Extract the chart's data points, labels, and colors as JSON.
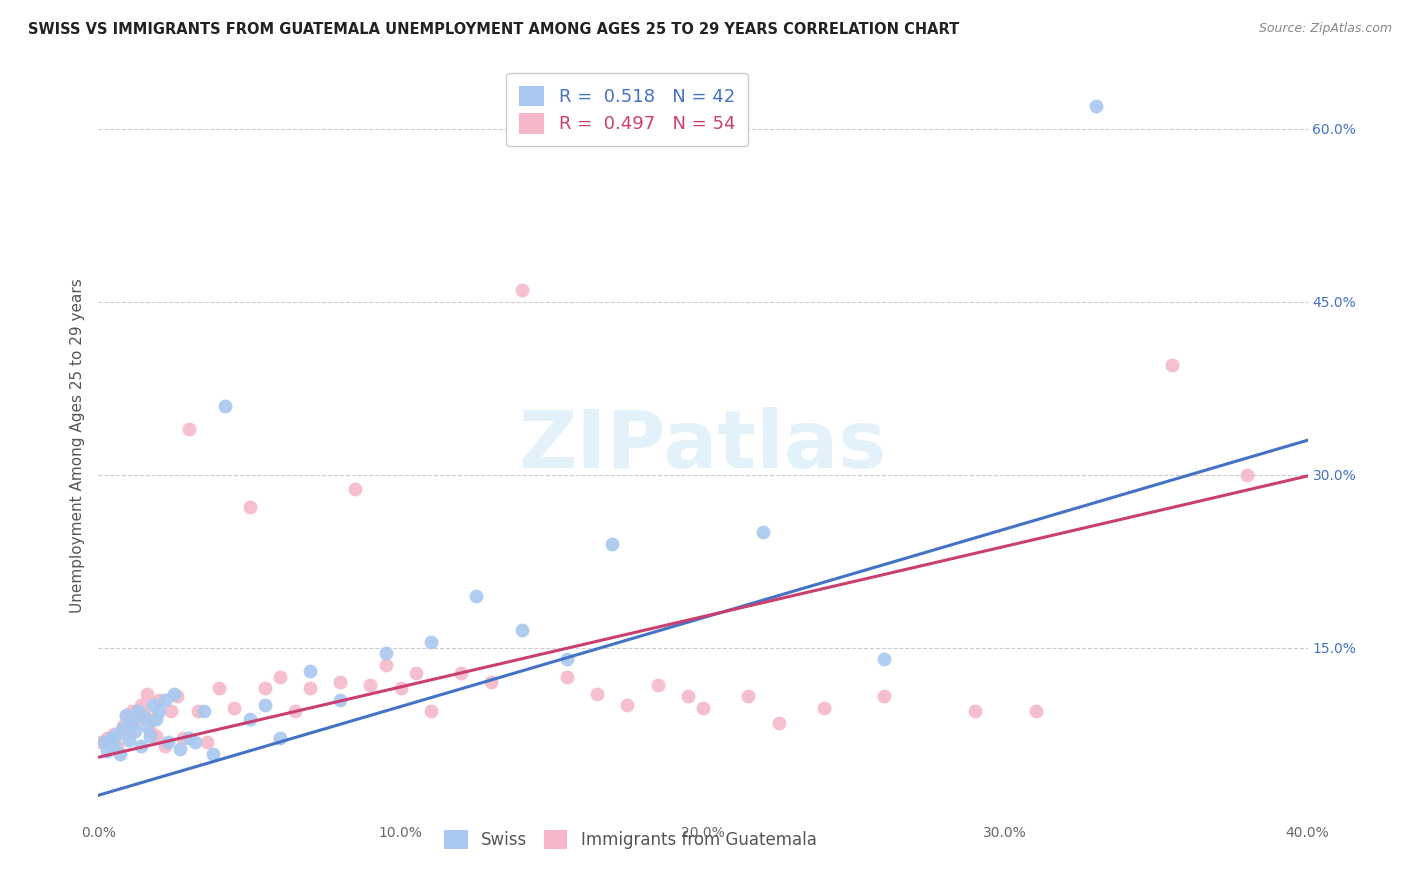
{
  "title": "SWISS VS IMMIGRANTS FROM GUATEMALA UNEMPLOYMENT AMONG AGES 25 TO 29 YEARS CORRELATION CHART",
  "source": "Source: ZipAtlas.com",
  "ylabel": "Unemployment Among Ages 25 to 29 years",
  "xlim": [
    0.0,
    0.4
  ],
  "ylim": [
    0.0,
    0.65
  ],
  "xtick_labels": [
    "0.0%",
    "",
    "10.0%",
    "",
    "20.0%",
    "",
    "30.0%",
    "",
    "40.0%"
  ],
  "xtick_vals": [
    0.0,
    0.05,
    0.1,
    0.15,
    0.2,
    0.25,
    0.3,
    0.35,
    0.4
  ],
  "ytick_labels": [
    "15.0%",
    "30.0%",
    "45.0%",
    "60.0%"
  ],
  "ytick_vals": [
    0.15,
    0.3,
    0.45,
    0.6
  ],
  "swiss_color": "#A8C8F0",
  "guatemala_color": "#F5B8C8",
  "swiss_line_color": "#4472C4",
  "guatemala_line_color": "#C94070",
  "swiss_R": 0.518,
  "swiss_N": 42,
  "guatemala_R": 0.497,
  "guatemala_N": 54,
  "swiss_intercept": 0.022,
  "swiss_slope": 0.77,
  "guatemala_intercept": 0.055,
  "guatemala_slope": 0.61,
  "swiss_x": [
    0.002,
    0.003,
    0.004,
    0.005,
    0.006,
    0.007,
    0.008,
    0.009,
    0.01,
    0.011,
    0.012,
    0.013,
    0.014,
    0.015,
    0.016,
    0.017,
    0.018,
    0.019,
    0.02,
    0.022,
    0.023,
    0.025,
    0.027,
    0.03,
    0.032,
    0.035,
    0.038,
    0.042,
    0.05,
    0.055,
    0.06,
    0.07,
    0.08,
    0.095,
    0.11,
    0.125,
    0.14,
    0.155,
    0.17,
    0.22,
    0.26,
    0.33
  ],
  "swiss_y": [
    0.068,
    0.06,
    0.072,
    0.065,
    0.075,
    0.058,
    0.08,
    0.092,
    0.07,
    0.085,
    0.078,
    0.095,
    0.065,
    0.09,
    0.082,
    0.073,
    0.1,
    0.088,
    0.095,
    0.105,
    0.068,
    0.11,
    0.062,
    0.072,
    0.068,
    0.095,
    0.058,
    0.36,
    0.088,
    0.1,
    0.072,
    0.13,
    0.105,
    0.145,
    0.155,
    0.195,
    0.165,
    0.14,
    0.24,
    0.25,
    0.14,
    0.62
  ],
  "guatemala_x": [
    0.001,
    0.003,
    0.005,
    0.006,
    0.008,
    0.009,
    0.01,
    0.011,
    0.012,
    0.014,
    0.015,
    0.016,
    0.017,
    0.018,
    0.019,
    0.02,
    0.022,
    0.024,
    0.026,
    0.028,
    0.03,
    0.033,
    0.036,
    0.04,
    0.045,
    0.05,
    0.055,
    0.06,
    0.065,
    0.07,
    0.08,
    0.085,
    0.09,
    0.095,
    0.1,
    0.105,
    0.11,
    0.12,
    0.13,
    0.14,
    0.155,
    0.165,
    0.175,
    0.185,
    0.195,
    0.2,
    0.215,
    0.225,
    0.24,
    0.26,
    0.29,
    0.31,
    0.355,
    0.38
  ],
  "guatemala_y": [
    0.068,
    0.072,
    0.075,
    0.065,
    0.082,
    0.09,
    0.078,
    0.095,
    0.085,
    0.1,
    0.092,
    0.11,
    0.078,
    0.088,
    0.073,
    0.105,
    0.065,
    0.095,
    0.108,
    0.072,
    0.34,
    0.095,
    0.068,
    0.115,
    0.098,
    0.272,
    0.115,
    0.125,
    0.095,
    0.115,
    0.12,
    0.288,
    0.118,
    0.135,
    0.115,
    0.128,
    0.095,
    0.128,
    0.12,
    0.46,
    0.125,
    0.11,
    0.1,
    0.118,
    0.108,
    0.098,
    0.108,
    0.085,
    0.098,
    0.108,
    0.095,
    0.095,
    0.395,
    0.3
  ],
  "watermark_text": "ZIPatlas",
  "background_color": "#FFFFFF",
  "grid_color": "#CCCCCC"
}
